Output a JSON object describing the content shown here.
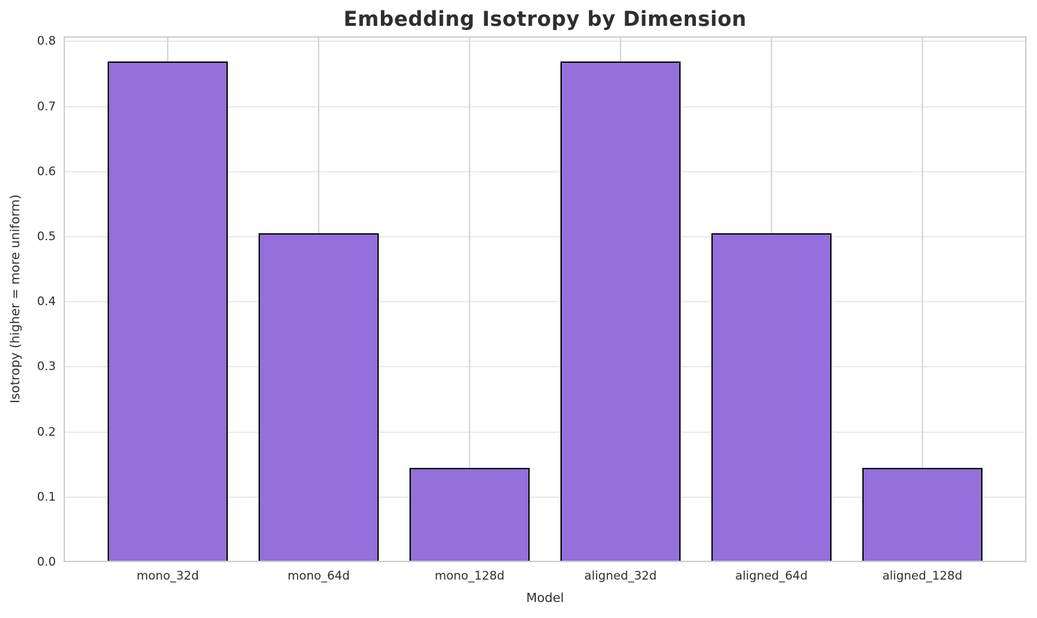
{
  "chart_data": {
    "type": "bar",
    "title": "Embedding Isotropy by Dimension",
    "xlabel": "Model",
    "ylabel": "Isotropy (higher = more uniform)",
    "categories": [
      "mono_32d",
      "mono_64d",
      "mono_128d",
      "aligned_32d",
      "aligned_64d",
      "aligned_128d"
    ],
    "values": [
      0.769,
      0.505,
      0.145,
      0.769,
      0.505,
      0.145
    ],
    "ylim": [
      0,
      0.808
    ],
    "xlim": [
      -0.69,
      5.69
    ],
    "bar_width": 0.8,
    "yticks": [
      0.0,
      0.1,
      0.2,
      0.3,
      0.4,
      0.5,
      0.6,
      0.7,
      0.8
    ],
    "ytick_labels": [
      "0.0",
      "0.1",
      "0.2",
      "0.3",
      "0.4",
      "0.5",
      "0.6",
      "0.7",
      "0.8"
    ],
    "grid": true,
    "legend_position": "none",
    "colors": {
      "bar_fill": "#9370DB",
      "bar_edge": "#0d0d0d",
      "grid_horizontal": "#ebebeb",
      "grid_vertical": "#d7d7d7",
      "spine": "#cfcfcf",
      "text": "#2e2e2e",
      "background": "#ffffff"
    }
  }
}
